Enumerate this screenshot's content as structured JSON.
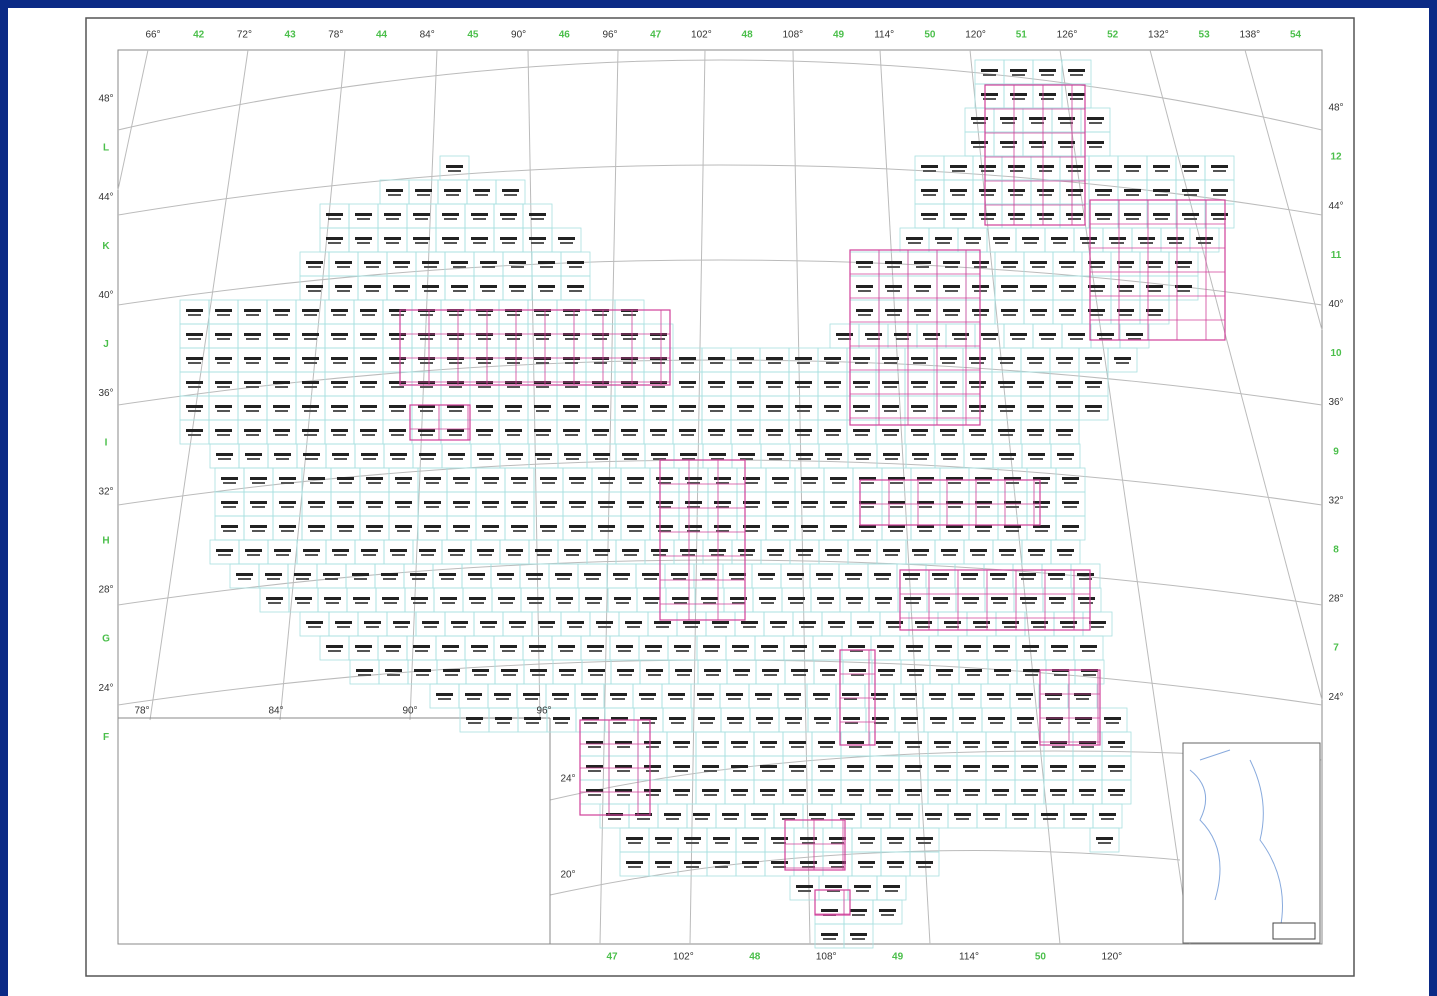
{
  "top_labels": [
    "66°",
    "42",
    "72°",
    "43",
    "78°",
    "44",
    "84°",
    "45",
    "90°",
    "46",
    "96°",
    "47",
    "102°",
    "48",
    "108°",
    "49",
    "114°",
    "50",
    "120°",
    "51",
    "126°",
    "52",
    "132°",
    "53",
    "138°",
    "54"
  ],
  "left_labels": [
    "48°",
    "L",
    "44°",
    "K",
    "40°",
    "J",
    "36°",
    "I",
    "32°",
    "H",
    "28°",
    "G",
    "24°",
    "F"
  ],
  "right_labels": [
    "48°",
    "12",
    "44°",
    "11",
    "40°",
    "10",
    "36°",
    "9",
    "32°",
    "8",
    "28°",
    "7",
    "24°"
  ],
  "bottom_labels": [
    "47",
    "102°",
    "48",
    "108°",
    "49",
    "114°",
    "50",
    "120°"
  ],
  "inset_lon_labels": [
    "78°",
    "84°",
    "90°",
    "96°"
  ],
  "inset_lat_labels": [
    "24°",
    "20°"
  ]
}
